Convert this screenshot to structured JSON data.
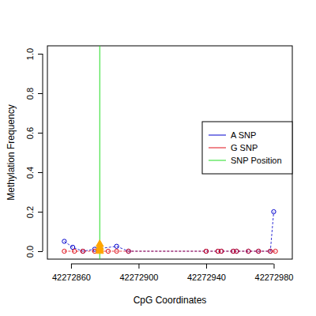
{
  "chart_data": {
    "type": "scatter",
    "x_label": "CpG Coordinates",
    "y_label": "Methylation Frequency",
    "xlim": [
      42272846,
      42272991
    ],
    "xticks": [
      42272860,
      42272900,
      42272940,
      42272980
    ],
    "ylim": [
      -0.04,
      1.04
    ],
    "yticks": [
      {
        "value": 0,
        "label": "0.0"
      },
      0.2,
      0.4,
      0.6,
      0.8,
      {
        "value": 1,
        "label": "1.0"
      }
    ],
    "legend": "right",
    "series": [
      {
        "name": "A SNP",
        "color": "#0000cd",
        "marker": "circle",
        "line_style": "dashed",
        "x": [
          42272856,
          42272861,
          42272867,
          42272874,
          42272887,
          42272894,
          42272940,
          42272947,
          42272949,
          42272956,
          42272958,
          42272965,
          42272971,
          42272978,
          42272980
        ],
        "values": [
          0.05,
          0.02,
          0,
          0.01,
          0.025,
          0,
          0,
          0,
          0,
          0,
          0,
          0,
          0,
          0,
          0.2
        ]
      },
      {
        "name": "G SNP",
        "color": "#e0101a",
        "marker": "circle",
        "line_style": "dashed",
        "x": [
          42272856,
          42272862,
          42272867,
          42272874,
          42272882,
          42272887,
          42272894,
          42272940,
          42272947,
          42272949,
          42272956,
          42272958,
          42272965,
          42272971,
          42272978,
          42272981
        ],
        "values": [
          0,
          0,
          0,
          0,
          0,
          0,
          0,
          0,
          0,
          0,
          0,
          0,
          0,
          0,
          0,
          0
        ]
      }
    ],
    "snp_position": {
      "name": "SNP Position",
      "color": "#22dd22",
      "x": 42272877
    },
    "snp_markers": {
      "color": "#ffa500",
      "marker": "triangle",
      "x": [
        42272877,
        42272877,
        42272877,
        42272877
      ],
      "values": [
        0,
        0.01,
        0.02,
        0.035
      ]
    }
  }
}
